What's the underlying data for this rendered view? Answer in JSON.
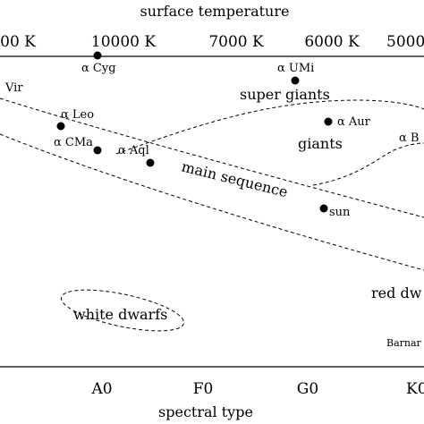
{
  "diagram": {
    "top_axis_label": "surface temperature",
    "bottom_axis_label": "spectral type",
    "temperature_ticks": [
      "00 K",
      "10000 K",
      "7000 K",
      "6000 K",
      "5000"
    ],
    "spectral_ticks": [
      "A0",
      "F0",
      "G0",
      "K0"
    ],
    "regions": {
      "super_giants": "super giants",
      "giants": "giants",
      "main_sequence": "main sequence",
      "white_dwarfs": "white dwarfs",
      "red_dwarfs": "red dw"
    },
    "stars": [
      {
        "id": "alpha-cyg",
        "label": "α Cyg"
      },
      {
        "id": "alpha-umi",
        "label": "α UMi"
      },
      {
        "id": "alpha-leo",
        "label": "α Leo"
      },
      {
        "id": "alpha-aur",
        "label": "α Aur"
      },
      {
        "id": "alpha-cma",
        "label": "α CMa"
      },
      {
        "id": "alpha-aql",
        "label": "α Aql"
      },
      {
        "id": "alpha-boo",
        "label": "α B"
      },
      {
        "id": "sun",
        "label": "sun"
      }
    ],
    "edge_labels": {
      "vir": "Vir",
      "barnard": "Barnar"
    }
  }
}
